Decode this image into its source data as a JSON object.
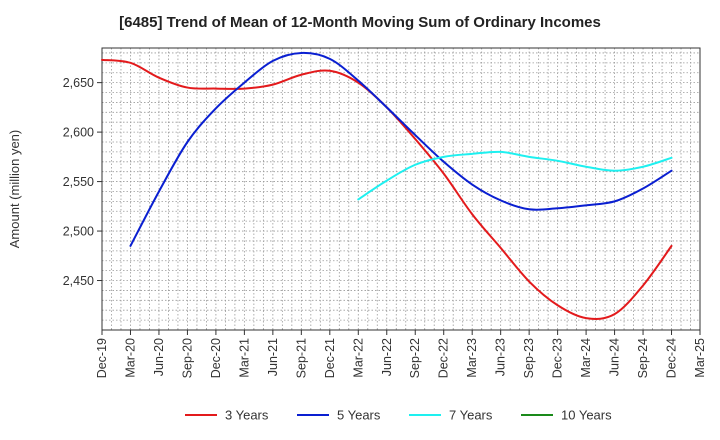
{
  "chart_data": {
    "type": "line",
    "title": "[6485]  Trend of Mean of 12-Month Moving Sum of Ordinary Incomes",
    "xlabel": "",
    "ylabel": "Amount (million yen)",
    "ylim": [
      2400,
      2685
    ],
    "yticks": [
      2450,
      2500,
      2550,
      2600,
      2650
    ],
    "ytick_labels": [
      "2,450",
      "2,500",
      "2,550",
      "2,600",
      "2,650"
    ],
    "categories": [
      "Dec-19",
      "Mar-20",
      "Jun-20",
      "Sep-20",
      "Dec-20",
      "Mar-21",
      "Jun-21",
      "Sep-21",
      "Dec-21",
      "Mar-22",
      "Jun-22",
      "Sep-22",
      "Dec-22",
      "Mar-23",
      "Jun-23",
      "Sep-23",
      "Dec-23",
      "Mar-24",
      "Jun-24",
      "Sep-24",
      "Dec-24",
      "Mar-25"
    ],
    "grid": true,
    "legend_position": "bottom",
    "series": [
      {
        "name": "3 Years",
        "color": "#e31a1c",
        "values": [
          2673,
          2670,
          2655,
          2645,
          2644,
          2644,
          2648,
          2658,
          2662,
          2650,
          2625,
          2593,
          2558,
          2517,
          2483,
          2449,
          2425,
          2412,
          2416,
          2445,
          2485,
          null
        ]
      },
      {
        "name": "5 Years",
        "color": "#0a1fd1",
        "values": [
          null,
          2485,
          2540,
          2590,
          2624,
          2650,
          2672,
          2680,
          2674,
          2652,
          2625,
          2597,
          2570,
          2547,
          2531,
          2522,
          2523,
          2526,
          2530,
          2543,
          2561,
          null
        ]
      },
      {
        "name": "7 Years",
        "color": "#1ef0f0",
        "values": [
          null,
          null,
          null,
          null,
          null,
          null,
          null,
          null,
          null,
          2532,
          2551,
          2567,
          2575,
          2578,
          2580,
          2575,
          2571,
          2565,
          2561,
          2565,
          2574,
          null
        ]
      },
      {
        "name": "10 Years",
        "color": "#1a8a1a",
        "values": [
          null,
          null,
          null,
          null,
          null,
          null,
          null,
          null,
          null,
          null,
          null,
          null,
          null,
          null,
          null,
          null,
          null,
          null,
          null,
          null,
          null,
          null
        ]
      }
    ]
  }
}
